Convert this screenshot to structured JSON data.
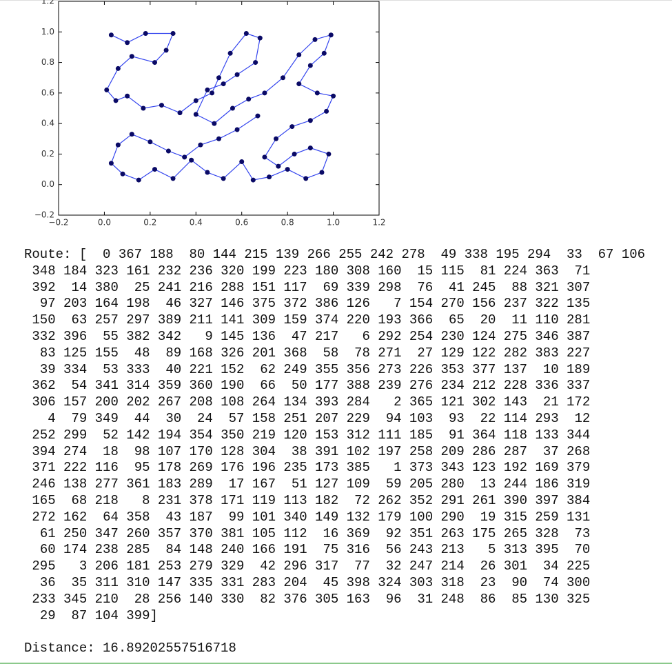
{
  "chart_data": {
    "type": "line",
    "color": "#3344ee",
    "marker_color": "#0a0a66",
    "x": [
      0.03,
      0.1,
      0.18,
      0.3,
      0.27,
      0.22,
      0.12,
      0.06,
      0.01,
      0.05,
      0.1,
      0.17,
      0.25,
      0.33,
      0.4,
      0.47,
      0.5,
      0.55,
      0.62,
      0.68,
      0.66,
      0.58,
      0.52,
      0.45,
      0.4,
      0.48,
      0.56,
      0.63,
      0.7,
      0.78,
      0.85,
      0.92,
      0.99,
      0.96,
      0.9,
      0.85,
      0.93,
      1.0,
      0.97,
      0.9,
      0.82,
      0.75,
      0.7,
      0.76,
      0.83,
      0.9,
      0.98,
      0.95,
      0.88,
      0.8,
      0.72,
      0.65,
      0.6,
      0.52,
      0.45,
      0.38,
      0.3,
      0.22,
      0.15,
      0.08,
      0.03,
      0.06,
      0.12,
      0.2,
      0.28,
      0.35,
      0.42,
      0.5,
      0.58,
      0.67
    ],
    "values": [
      0.98,
      0.93,
      0.99,
      0.99,
      0.88,
      0.8,
      0.84,
      0.76,
      0.62,
      0.55,
      0.58,
      0.5,
      0.52,
      0.47,
      0.55,
      0.6,
      0.7,
      0.86,
      0.99,
      0.96,
      0.8,
      0.72,
      0.66,
      0.62,
      0.46,
      0.4,
      0.5,
      0.56,
      0.6,
      0.7,
      0.85,
      0.95,
      0.98,
      0.86,
      0.78,
      0.66,
      0.6,
      0.58,
      0.48,
      0.42,
      0.38,
      0.3,
      0.18,
      0.12,
      0.2,
      0.24,
      0.2,
      0.08,
      0.04,
      0.1,
      0.05,
      0.03,
      0.15,
      0.04,
      0.08,
      0.16,
      0.04,
      0.1,
      0.03,
      0.07,
      0.14,
      0.26,
      0.33,
      0.28,
      0.22,
      0.18,
      0.26,
      0.3,
      0.36,
      0.45
    ],
    "xlim": [
      -0.2,
      1.2
    ],
    "ylim": [
      -0.2,
      1.2
    ],
    "xticks": [
      {
        "value": -0.2,
        "label": "−0.2"
      },
      {
        "value": 0,
        "label": "0.0"
      },
      0.2,
      0.4,
      0.6,
      0.8,
      {
        "value": 1,
        "label": "1.0"
      },
      1.2
    ],
    "yticks": [
      {
        "value": -0.2,
        "label": "−0.2"
      },
      {
        "value": 0,
        "label": "0.0"
      },
      0.2,
      0.4,
      0.6,
      0.8,
      {
        "value": 1,
        "label": "1.0"
      },
      1.2
    ]
  },
  "output": {
    "route_label": "Route: [",
    "route_close": "]",
    "route": [
      0,
      367,
      188,
      80,
      144,
      215,
      139,
      266,
      255,
      242,
      278,
      49,
      338,
      195,
      294,
      33,
      67,
      106,
      348,
      184,
      323,
      161,
      232,
      236,
      320,
      199,
      223,
      180,
      308,
      160,
      15,
      115,
      81,
      224,
      363,
      71,
      392,
      14,
      380,
      25,
      241,
      216,
      288,
      151,
      117,
      69,
      339,
      298,
      76,
      41,
      245,
      88,
      321,
      307,
      97,
      203,
      164,
      198,
      46,
      327,
      146,
      375,
      372,
      386,
      126,
      7,
      154,
      270,
      156,
      237,
      322,
      135,
      150,
      63,
      257,
      297,
      389,
      211,
      141,
      309,
      159,
      374,
      220,
      193,
      366,
      65,
      20,
      11,
      110,
      281,
      332,
      396,
      55,
      382,
      342,
      9,
      145,
      136,
      47,
      217,
      6,
      292,
      254,
      230,
      124,
      275,
      346,
      387,
      83,
      125,
      155,
      48,
      89,
      168,
      326,
      201,
      368,
      58,
      78,
      271,
      27,
      129,
      122,
      282,
      383,
      227,
      39,
      334,
      53,
      333,
      40,
      221,
      152,
      62,
      249,
      355,
      356,
      273,
      226,
      353,
      377,
      137,
      10,
      189,
      362,
      54,
      341,
      314,
      359,
      360,
      190,
      66,
      50,
      177,
      388,
      239,
      276,
      234,
      212,
      228,
      336,
      337,
      306,
      157,
      200,
      202,
      267,
      208,
      108,
      264,
      134,
      393,
      284,
      2,
      365,
      121,
      302,
      143,
      21,
      172,
      4,
      79,
      349,
      44,
      30,
      24,
      57,
      158,
      251,
      207,
      229,
      94,
      103,
      93,
      22,
      114,
      293,
      12,
      252,
      299,
      52,
      142,
      194,
      354,
      350,
      219,
      120,
      153,
      312,
      111,
      185,
      91,
      364,
      118,
      133,
      344,
      394,
      274,
      18,
      98,
      107,
      170,
      128,
      304,
      38,
      391,
      102,
      197,
      258,
      209,
      286,
      287,
      37,
      268,
      371,
      222,
      116,
      95,
      178,
      269,
      176,
      196,
      235,
      173,
      385,
      1,
      373,
      343,
      123,
      192,
      169,
      379,
      246,
      138,
      277,
      361,
      183,
      289,
      17,
      167,
      51,
      127,
      109,
      59,
      205,
      280,
      13,
      244,
      186,
      319,
      165,
      68,
      218,
      8,
      231,
      378,
      171,
      119,
      113,
      182,
      72,
      262,
      352,
      291,
      261,
      390,
      397,
      384,
      272,
      162,
      64,
      358,
      43,
      187,
      99,
      101,
      340,
      149,
      132,
      179,
      100,
      290,
      19,
      315,
      259,
      131,
      61,
      250,
      347,
      260,
      357,
      370,
      381,
      105,
      112,
      16,
      369,
      92,
      351,
      263,
      175,
      265,
      328,
      73,
      60,
      174,
      238,
      285,
      84,
      148,
      240,
      166,
      191,
      75,
      316,
      56,
      243,
      213,
      5,
      313,
      395,
      70,
      295,
      3,
      206,
      181,
      253,
      279,
      329,
      42,
      296,
      317,
      77,
      32,
      247,
      214,
      26,
      301,
      34,
      225,
      36,
      35,
      311,
      310,
      147,
      335,
      331,
      283,
      204,
      45,
      398,
      324,
      303,
      318,
      23,
      90,
      74,
      300,
      233,
      345,
      210,
      28,
      256,
      140,
      330,
      82,
      376,
      305,
      163,
      96,
      31,
      248,
      86,
      85,
      130,
      325,
      29,
      87,
      104,
      399
    ],
    "distance_label": "Distance:",
    "distance": 16.89202557516718
  }
}
